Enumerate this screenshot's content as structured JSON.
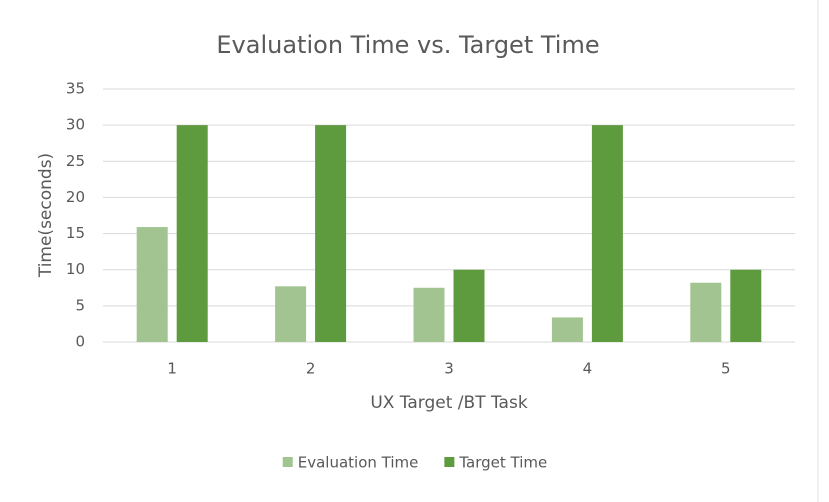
{
  "chart_data": {
    "type": "bar",
    "title": "Evaluation Time vs. Target Time",
    "x_label": "UX Target /BT Task",
    "y_label": "Time(seconds)",
    "categories": [
      "1",
      "2",
      "3",
      "4",
      "5"
    ],
    "series": [
      {
        "name": "Evaluation Time",
        "color": "#a1c490",
        "values": [
          15.9,
          7.7,
          7.5,
          3.4,
          8.2
        ]
      },
      {
        "name": "Target Time",
        "color": "#5e9a3e",
        "values": [
          30,
          30,
          10,
          30,
          10
        ]
      }
    ],
    "ylim": [
      0,
      35
    ],
    "yticks": [
      0,
      5,
      10,
      15,
      20,
      25,
      30,
      35
    ],
    "grid": true,
    "legend": "bottom"
  }
}
